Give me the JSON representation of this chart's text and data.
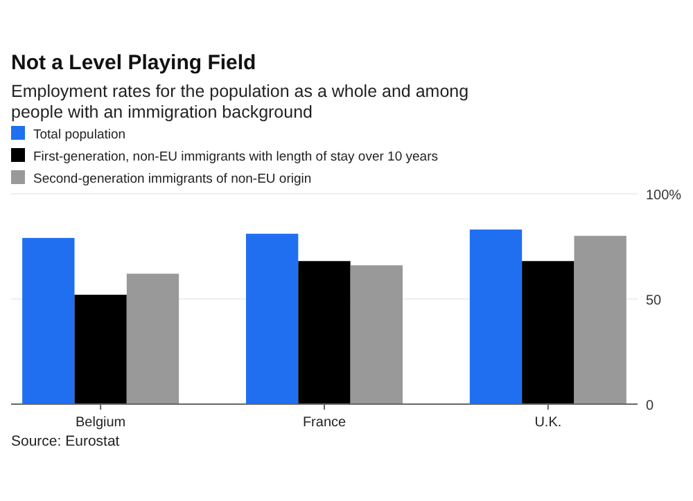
{
  "chart_data": {
    "type": "bar",
    "title": "Not a Level Playing Field",
    "subtitle": "Employment rates for the population as a whole and among people with an immigration background",
    "categories": [
      "Belgium",
      "France",
      "U.K."
    ],
    "series": [
      {
        "name": "Total population",
        "color": "#1f6ff0",
        "values": [
          79,
          81,
          83
        ]
      },
      {
        "name": "First-generation, non-EU immigrants with length of stay over 10 years",
        "color": "#000000",
        "values": [
          52,
          68,
          68
        ]
      },
      {
        "name": "Second-generation immigrants of non-EU origin",
        "color": "#999999",
        "values": [
          62,
          66,
          80
        ]
      }
    ],
    "ylim": [
      0,
      100
    ],
    "yticks": [
      0,
      50,
      {
        "value": 100,
        "label": "100%"
      }
    ],
    "grid": "y",
    "legend": "top",
    "annotations": [
      "Source: Eurostat"
    ]
  }
}
